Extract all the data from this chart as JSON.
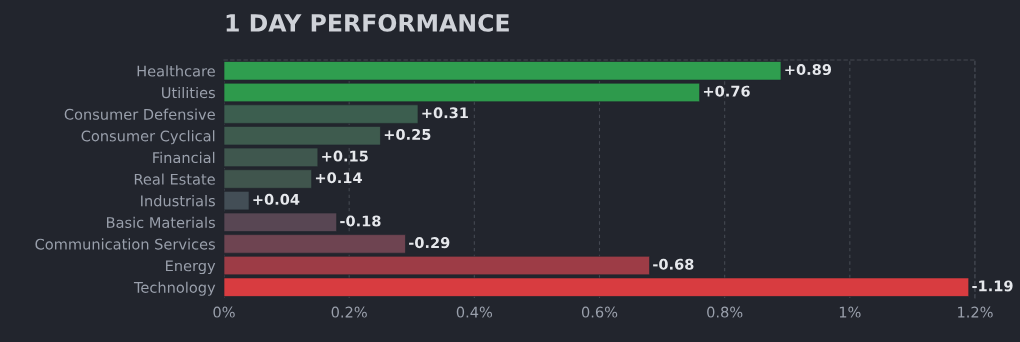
{
  "chart_data": {
    "type": "bar",
    "orientation": "horizontal",
    "title": "1 DAY PERFORMANCE",
    "categories": [
      "Healthcare",
      "Utilities",
      "Consumer Defensive",
      "Consumer Cyclical",
      "Financial",
      "Real Estate",
      "Industrials",
      "Basic Materials",
      "Communication Services",
      "Energy",
      "Technology"
    ],
    "values": [
      0.89,
      0.76,
      0.31,
      0.25,
      0.15,
      0.14,
      0.04,
      0.18,
      0.29,
      0.68,
      1.19
    ],
    "annotations": [
      {
        "text": "+0.89",
        "x": 0.89,
        "y": "Healthcare"
      },
      {
        "text": "+0.76",
        "x": 0.76,
        "y": "Utilities"
      },
      {
        "text": "+0.31",
        "x": 0.31,
        "y": "Consumer Defensive"
      },
      {
        "text": "+0.25",
        "x": 0.25,
        "y": "Consumer Cyclical"
      },
      {
        "text": "+0.15",
        "x": 0.15,
        "y": "Financial"
      },
      {
        "text": "+0.14",
        "x": 0.14,
        "y": "Real Estate"
      },
      {
        "text": "+0.04",
        "x": 0.04,
        "y": "Industrials"
      },
      {
        "text": "-0.18",
        "x": 0.18,
        "y": "Basic Materials"
      },
      {
        "text": "-0.29",
        "x": 0.29,
        "y": "Communication Services"
      },
      {
        "text": "-0.68",
        "x": 0.68,
        "y": "Energy"
      },
      {
        "text": "-1.19",
        "x": 1.19,
        "y": "Technology"
      }
    ],
    "colors": [
      "#2f9e4f",
      "#2e9a4c",
      "#3c5e4f",
      "#3e5b4e",
      "#3f574e",
      "#40554d",
      "#434e56",
      "#584653",
      "#6e4451",
      "#9d3c46",
      "#d83c40"
    ],
    "xlim": [
      0,
      1.2
    ],
    "xticks": [
      {
        "value": 0,
        "label": "0%"
      },
      {
        "value": 0.2,
        "label": "0.2%"
      },
      {
        "value": 0.4,
        "label": "0.4%"
      },
      {
        "value": 0.6,
        "label": "0.6%"
      },
      {
        "value": 0.8,
        "label": "0.8%"
      },
      {
        "value": 1,
        "label": "1%"
      },
      {
        "value": 1.2,
        "label": "1.2%"
      }
    ],
    "grid": "x",
    "legend": false
  }
}
